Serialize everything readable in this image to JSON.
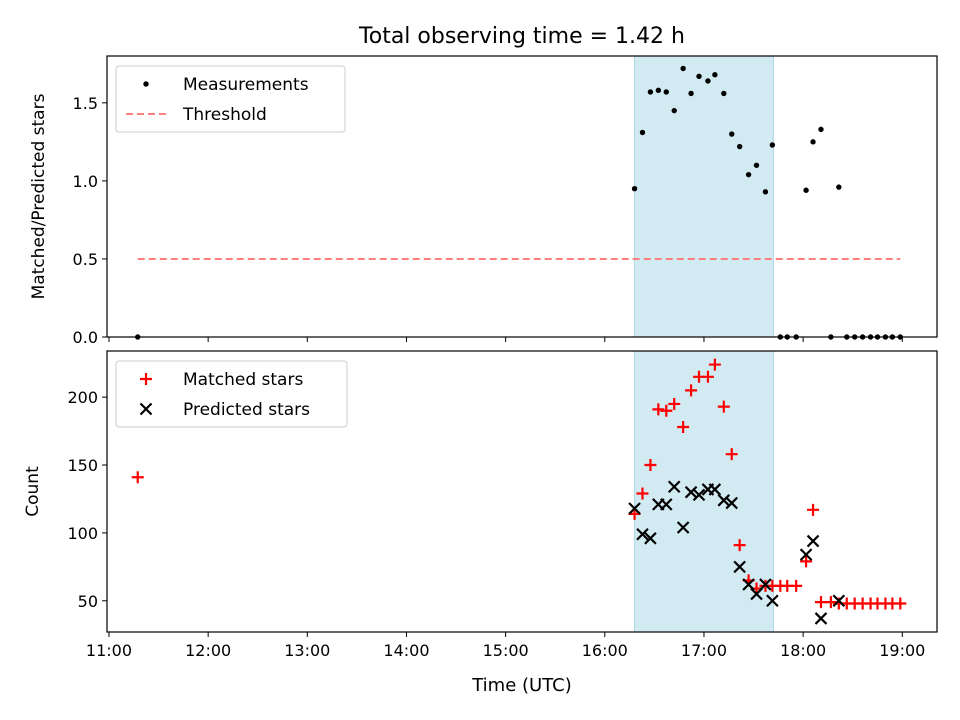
{
  "chart_data": {
    "title": "Total observing time = 1.42 h",
    "type": "scatter",
    "xlabel": "Time (UTC)",
    "x_unit": "hours (UTC)",
    "xlim": [
      10.98,
      19.35
    ],
    "xticks": [
      {
        "v": 11,
        "label": "11:00"
      },
      {
        "v": 12,
        "label": "12:00"
      },
      {
        "v": 13,
        "label": "13:00"
      },
      {
        "v": 14,
        "label": "14:00"
      },
      {
        "v": 15,
        "label": "15:00"
      },
      {
        "v": 16,
        "label": "16:00"
      },
      {
        "v": 17,
        "label": "17:00"
      },
      {
        "v": 18,
        "label": "18:00"
      },
      {
        "v": 19,
        "label": "19:00"
      }
    ],
    "observing_window": [
      16.3,
      17.7
    ],
    "window_color": "#add8e6",
    "panels": [
      {
        "ylabel": "Matched/Predicted stars",
        "ylim": [
          0,
          1.8
        ],
        "yticks": [
          {
            "v": 0,
            "label": "0.0"
          },
          {
            "v": 0.5,
            "label": "0.5"
          },
          {
            "v": 1.0,
            "label": "1.0"
          },
          {
            "v": 1.5,
            "label": "1.5"
          }
        ],
        "legend": {
          "position": "upper-left",
          "entries": [
            {
              "label": "Measurements",
              "marker": "dot",
              "color": "#000000"
            },
            {
              "label": "Threshold",
              "marker": "dashed-line",
              "color": "#ff7f7f"
            }
          ]
        },
        "series": [
          {
            "name": "Measurements",
            "marker": "dot",
            "color": "#000000",
            "x": [
              11.29,
              16.3,
              16.38,
              16.46,
              16.54,
              16.62,
              16.7,
              16.79,
              16.87,
              16.95,
              17.04,
              17.11,
              17.2,
              17.28,
              17.36,
              17.45,
              17.53,
              17.62,
              17.69,
              17.77,
              17.84,
              17.93,
              18.03,
              18.1,
              18.18,
              18.28,
              18.36,
              18.44,
              18.52,
              18.6,
              18.68,
              18.75,
              18.83,
              18.9,
              18.98
            ],
            "y": [
              0,
              0.95,
              1.31,
              1.57,
              1.58,
              1.57,
              1.45,
              1.72,
              1.56,
              1.67,
              1.64,
              1.68,
              1.56,
              1.3,
              1.22,
              1.04,
              1.1,
              0.93,
              1.23,
              0,
              0,
              0,
              0.94,
              1.25,
              1.33,
              0,
              0.96,
              0,
              0,
              0,
              0,
              0,
              0,
              0,
              0
            ]
          },
          {
            "name": "Threshold",
            "marker": "dashed-line",
            "color": "#ff7f7f",
            "x": [
              11.29,
              18.98
            ],
            "y": [
              0.5,
              0.5
            ]
          }
        ]
      },
      {
        "ylabel": "Count",
        "ylim": [
          27,
          234
        ],
        "yticks": [
          {
            "v": 50,
            "label": "50"
          },
          {
            "v": 100,
            "label": "100"
          },
          {
            "v": 150,
            "label": "150"
          },
          {
            "v": 200,
            "label": "200"
          }
        ],
        "legend": {
          "position": "upper-left",
          "entries": [
            {
              "label": "Matched stars",
              "marker": "plus",
              "color": "#ff0000"
            },
            {
              "label": "Predicted stars",
              "marker": "x",
              "color": "#000000"
            }
          ]
        },
        "series": [
          {
            "name": "Matched stars",
            "marker": "plus",
            "color": "#ff0000",
            "x": [
              11.29,
              16.3,
              16.38,
              16.46,
              16.54,
              16.62,
              16.7,
              16.79,
              16.87,
              16.95,
              17.04,
              17.11,
              17.2,
              17.28,
              17.36,
              17.45,
              17.53,
              17.62,
              17.69,
              17.77,
              17.84,
              17.93,
              18.03,
              18.1,
              18.18,
              18.28,
              18.36,
              18.44,
              18.52,
              18.6,
              18.68,
              18.75,
              18.83,
              18.9,
              18.98
            ],
            "y": [
              141,
              114,
              129,
              150,
              191,
              190,
              195,
              178,
              205,
              215,
              215,
              224,
              193,
              158,
              91,
              65,
              59,
              61,
              61,
              61,
              61,
              61,
              79,
              117,
              49,
              49,
              48,
              48,
              48,
              48,
              48,
              48,
              48,
              48,
              48
            ]
          },
          {
            "name": "Predicted stars",
            "marker": "x",
            "color": "#000000",
            "x": [
              16.3,
              16.38,
              16.46,
              16.54,
              16.62,
              16.7,
              16.79,
              16.87,
              16.95,
              17.04,
              17.11,
              17.2,
              17.28,
              17.36,
              17.45,
              17.53,
              17.62,
              17.69,
              18.03,
              18.1,
              18.18,
              18.36
            ],
            "y": [
              118,
              99,
              96,
              121,
              121,
              134,
              104,
              130,
              128,
              132,
              132,
              124,
              122,
              75,
              62,
              55,
              62,
              50,
              84,
              94,
              37,
              50
            ]
          }
        ]
      }
    ]
  }
}
